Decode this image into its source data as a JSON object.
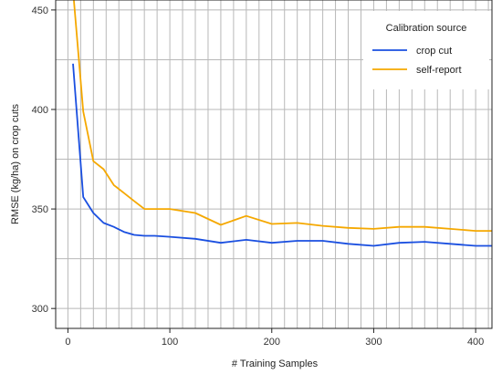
{
  "chart_data": {
    "type": "line",
    "xlabel": "# Training Samples",
    "ylabel": "RMSE (kg/ha) on crop cuts",
    "xlim": [
      -12,
      416
    ],
    "ylim": [
      290,
      455
    ],
    "x_ticks": [
      0,
      100,
      200,
      300,
      400
    ],
    "y_ticks": [
      300,
      350,
      400,
      450
    ],
    "x_gridlines": [
      0,
      12.5,
      25,
      37.5,
      50,
      62.5,
      75,
      87.5,
      100,
      112.5,
      125,
      137.5,
      150,
      162.5,
      175,
      187.5,
      200,
      212.5,
      225,
      237.5,
      250,
      262.5,
      275,
      287.5,
      300,
      312.5,
      325,
      337.5,
      350,
      362.5,
      375,
      387.5,
      400,
      412.5
    ],
    "y_gridlines": [
      300,
      325,
      350,
      375,
      400,
      425,
      450
    ],
    "grid": true,
    "legend": {
      "title": "Calibration source",
      "position": "top-right",
      "entries": [
        "crop cut",
        "self-report"
      ]
    },
    "series": [
      {
        "name": "crop cut",
        "color": "#1a4fe0",
        "x": [
          5,
          15,
          25,
          35,
          45,
          55,
          65,
          75,
          85,
          100,
          125,
          150,
          175,
          200,
          225,
          250,
          275,
          300,
          325,
          350,
          375,
          400,
          416
        ],
        "values": [
          423,
          356,
          348,
          343,
          341,
          338.5,
          337,
          336.5,
          336.5,
          336,
          335,
          333,
          334.5,
          333,
          334,
          334,
          332.5,
          331.5,
          333,
          333.5,
          332.5,
          331.5,
          331.5
        ]
      },
      {
        "name": "self-report",
        "color": "#f5a800",
        "x": [
          5,
          15,
          25,
          35,
          45,
          55,
          65,
          75,
          85,
          100,
          125,
          150,
          175,
          200,
          225,
          250,
          275,
          300,
          325,
          350,
          375,
          400,
          416
        ],
        "values": [
          460,
          399,
          374,
          370,
          362,
          358,
          354,
          350,
          350,
          350,
          348,
          342,
          346.5,
          342.5,
          343,
          341.5,
          340.5,
          340,
          341,
          341,
          340,
          339,
          339
        ]
      }
    ]
  }
}
